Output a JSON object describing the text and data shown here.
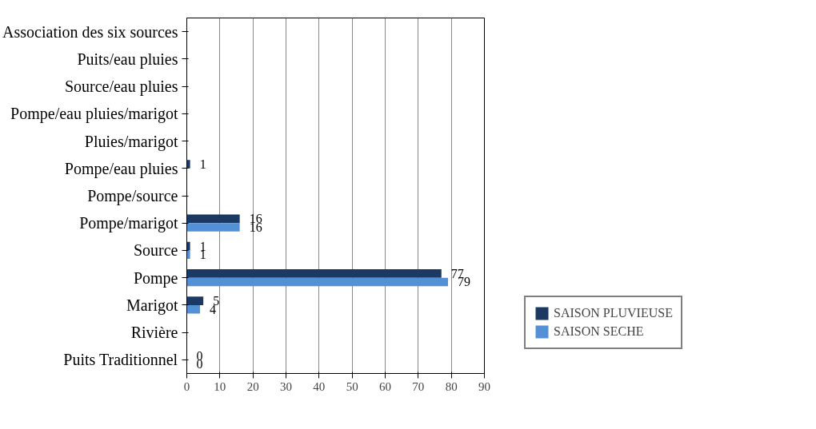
{
  "chart_data": {
    "type": "bar",
    "orientation": "horizontal",
    "categories": [
      "Association des six sources",
      "Puits/eau pluies",
      "Source/eau pluies",
      "Pompe/eau pluies/marigot",
      "Pluies/marigot",
      "Pompe/eau pluies",
      "Pompe/source",
      "Pompe/marigot",
      "Source",
      "Pompe",
      "Marigot",
      "Rivière",
      "Puits Traditionnel"
    ],
    "series": [
      {
        "name": "SAISON PLUVIEUSE",
        "color": "#1a3a63",
        "values": [
          null,
          null,
          null,
          null,
          null,
          1,
          null,
          16,
          1,
          77,
          5,
          null,
          0
        ]
      },
      {
        "name": "SAISON SECHE",
        "color": "#5490d6",
        "values": [
          null,
          null,
          null,
          null,
          null,
          null,
          null,
          16,
          1,
          79,
          4,
          null,
          0
        ]
      }
    ],
    "xlim": [
      0,
      90
    ],
    "xticks": [
      0,
      10,
      20,
      30,
      40,
      50,
      60,
      70,
      80,
      90
    ],
    "grid": "x",
    "legend": "right",
    "data_labels": true
  }
}
